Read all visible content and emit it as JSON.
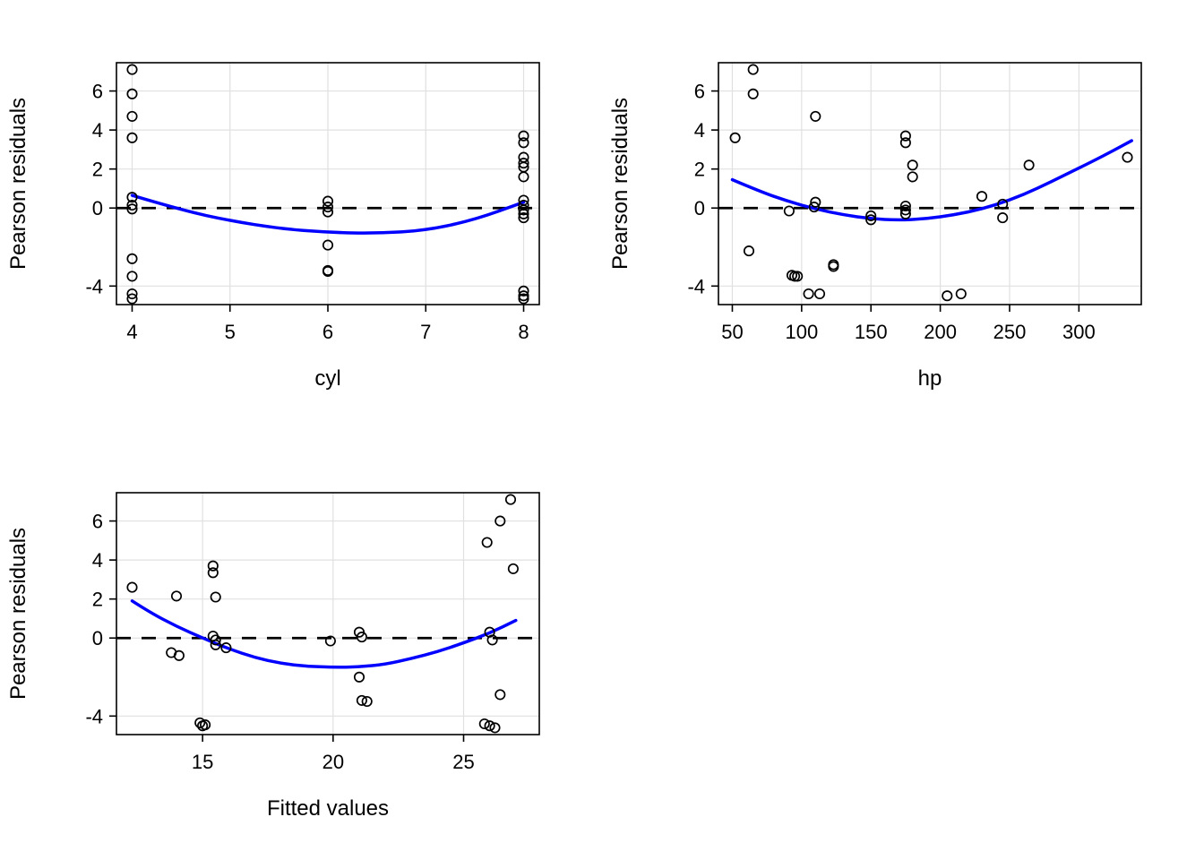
{
  "page": {
    "colors": {
      "point": "#000000",
      "smooth": "#0000ff",
      "zero": "#000000",
      "grid": "#e0e0e0",
      "box": "#000000",
      "background": "#ffffff"
    }
  },
  "chart_data": [
    {
      "type": "scatter",
      "title": "",
      "xlabel": "cyl",
      "ylabel": "Pearson residuals",
      "xlim": [
        3.84,
        8.16
      ],
      "ylim": [
        -4.95,
        7.45
      ],
      "xticks": [
        4,
        5,
        6,
        7,
        8
      ],
      "yticks": [
        -4,
        0,
        2,
        4,
        6
      ],
      "grid": true,
      "zero_line": 0,
      "points": [
        [
          4,
          7.1
        ],
        [
          4,
          5.85
        ],
        [
          4,
          4.7
        ],
        [
          4,
          3.6
        ],
        [
          4,
          0.55
        ],
        [
          4,
          0.15
        ],
        [
          4,
          -0.05
        ],
        [
          4,
          -2.6
        ],
        [
          4,
          -3.5
        ],
        [
          4,
          -4.4
        ],
        [
          4,
          -4.65
        ],
        [
          6,
          0.35
        ],
        [
          6,
          0.05
        ],
        [
          6,
          -0.2
        ],
        [
          6,
          -1.9
        ],
        [
          6,
          -3.2
        ],
        [
          6,
          -3.25
        ],
        [
          8,
          3.7
        ],
        [
          8,
          3.35
        ],
        [
          8,
          2.6
        ],
        [
          8,
          2.3
        ],
        [
          8,
          2.1
        ],
        [
          8,
          1.6
        ],
        [
          8,
          0.4
        ],
        [
          8,
          0.15
        ],
        [
          8,
          -0.1
        ],
        [
          8,
          -0.3
        ],
        [
          8,
          -0.5
        ],
        [
          8,
          -4.25
        ],
        [
          8,
          -4.5
        ],
        [
          8,
          -4.65
        ]
      ],
      "smooth_line": [
        [
          4,
          0.65
        ],
        [
          4.5,
          -0.1
        ],
        [
          5,
          -0.65
        ],
        [
          5.5,
          -1.05
        ],
        [
          6,
          -1.25
        ],
        [
          6.5,
          -1.3
        ],
        [
          7,
          -1.15
        ],
        [
          7.5,
          -0.6
        ],
        [
          8,
          0.3
        ]
      ]
    },
    {
      "type": "scatter",
      "title": "",
      "xlabel": "hp",
      "ylabel": "Pearson residuals",
      "xlim": [
        40,
        345
      ],
      "ylim": [
        -4.95,
        7.45
      ],
      "xticks": [
        50,
        100,
        150,
        200,
        250,
        300
      ],
      "yticks": [
        -4,
        0,
        2,
        4,
        6
      ],
      "grid": true,
      "zero_line": 0,
      "points": [
        [
          52,
          3.6
        ],
        [
          65,
          7.1
        ],
        [
          65,
          5.85
        ],
        [
          62,
          -2.2
        ],
        [
          91,
          -0.15
        ],
        [
          93,
          -3.45
        ],
        [
          95,
          -3.5
        ],
        [
          97,
          -3.5
        ],
        [
          105,
          -4.4
        ],
        [
          110,
          4.7
        ],
        [
          110,
          0.3
        ],
        [
          109,
          0.05
        ],
        [
          113,
          -4.4
        ],
        [
          123,
          -2.9
        ],
        [
          123,
          -3.0
        ],
        [
          150,
          -0.4
        ],
        [
          150,
          -0.6
        ],
        [
          175,
          3.7
        ],
        [
          175,
          3.35
        ],
        [
          180,
          2.2
        ],
        [
          180,
          1.6
        ],
        [
          175,
          0.1
        ],
        [
          175,
          -0.1
        ],
        [
          175,
          -0.3
        ],
        [
          205,
          -4.5
        ],
        [
          215,
          -4.4
        ],
        [
          230,
          0.6
        ],
        [
          245,
          0.2
        ],
        [
          245,
          -0.5
        ],
        [
          264,
          2.2
        ],
        [
          335,
          2.6
        ]
      ],
      "smooth_line": [
        [
          50,
          1.45
        ],
        [
          70,
          0.85
        ],
        [
          90,
          0.35
        ],
        [
          110,
          -0.05
        ],
        [
          130,
          -0.35
        ],
        [
          150,
          -0.55
        ],
        [
          170,
          -0.62
        ],
        [
          190,
          -0.55
        ],
        [
          210,
          -0.35
        ],
        [
          230,
          -0.05
        ],
        [
          250,
          0.4
        ],
        [
          270,
          1.0
        ],
        [
          290,
          1.7
        ],
        [
          310,
          2.4
        ],
        [
          325,
          2.95
        ],
        [
          338,
          3.45
        ]
      ]
    },
    {
      "type": "scatter",
      "title": "",
      "xlabel": "Fitted values",
      "ylabel": "Pearson residuals",
      "xlim": [
        11.7,
        27.9
      ],
      "ylim": [
        -4.95,
        7.45
      ],
      "xticks": [
        15,
        20,
        25
      ],
      "yticks": [
        -4,
        0,
        2,
        4,
        6
      ],
      "grid": true,
      "zero_line": 0,
      "points": [
        [
          12.3,
          2.6
        ],
        [
          14.0,
          2.15
        ],
        [
          13.8,
          -0.75
        ],
        [
          14.1,
          -0.9
        ],
        [
          14.9,
          -4.35
        ],
        [
          15.0,
          -4.5
        ],
        [
          15.1,
          -4.45
        ],
        [
          15.4,
          3.7
        ],
        [
          15.4,
          3.35
        ],
        [
          15.5,
          2.1
        ],
        [
          15.4,
          0.1
        ],
        [
          15.5,
          -0.1
        ],
        [
          15.5,
          -0.35
        ],
        [
          15.9,
          -0.5
        ],
        [
          19.9,
          -0.15
        ],
        [
          21.0,
          0.3
        ],
        [
          21.1,
          0.05
        ],
        [
          21.0,
          -2.0
        ],
        [
          21.1,
          -3.2
        ],
        [
          21.3,
          -3.25
        ],
        [
          25.9,
          4.9
        ],
        [
          26.4,
          6.0
        ],
        [
          26.8,
          7.1
        ],
        [
          26.9,
          3.55
        ],
        [
          26.0,
          0.3
        ],
        [
          26.1,
          -0.1
        ],
        [
          26.4,
          -2.9
        ],
        [
          25.8,
          -4.4
        ],
        [
          26.0,
          -4.5
        ],
        [
          26.2,
          -4.6
        ]
      ],
      "smooth_line": [
        [
          12.3,
          1.9
        ],
        [
          13,
          1.3
        ],
        [
          14,
          0.6
        ],
        [
          15,
          0.0
        ],
        [
          16,
          -0.55
        ],
        [
          17,
          -1.0
        ],
        [
          18,
          -1.3
        ],
        [
          19,
          -1.45
        ],
        [
          20,
          -1.5
        ],
        [
          21,
          -1.48
        ],
        [
          22,
          -1.35
        ],
        [
          23,
          -1.05
        ],
        [
          24,
          -0.7
        ],
        [
          25,
          -0.25
        ],
        [
          26,
          0.25
        ],
        [
          27,
          0.9
        ]
      ]
    }
  ]
}
